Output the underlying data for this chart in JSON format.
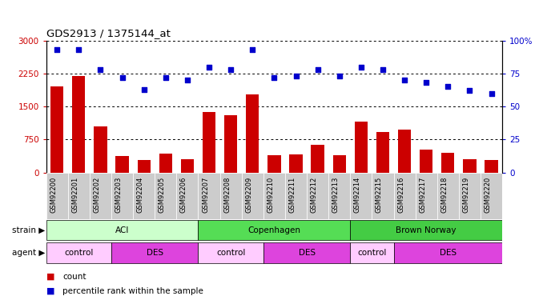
{
  "title": "GDS2913 / 1375144_at",
  "samples": [
    "GSM92200",
    "GSM92201",
    "GSM92202",
    "GSM92203",
    "GSM92204",
    "GSM92205",
    "GSM92206",
    "GSM92207",
    "GSM92208",
    "GSM92209",
    "GSM92210",
    "GSM92211",
    "GSM92212",
    "GSM92213",
    "GSM92214",
    "GSM92215",
    "GSM92216",
    "GSM92217",
    "GSM92218",
    "GSM92219",
    "GSM92220"
  ],
  "counts": [
    1950,
    2200,
    1050,
    380,
    290,
    430,
    310,
    1380,
    1310,
    1780,
    390,
    410,
    630,
    400,
    1150,
    920,
    980,
    520,
    440,
    310,
    290
  ],
  "percentiles": [
    93,
    93,
    78,
    72,
    63,
    72,
    70,
    80,
    78,
    93,
    72,
    73,
    78,
    73,
    80,
    78,
    70,
    68,
    65,
    62,
    60
  ],
  "ylim_left": [
    0,
    3000
  ],
  "ylim_right": [
    0,
    100
  ],
  "yticks_left": [
    0,
    750,
    1500,
    2250,
    3000
  ],
  "yticks_right": [
    0,
    25,
    50,
    75,
    100
  ],
  "bar_color": "#cc0000",
  "dot_color": "#0000cc",
  "strain_groups": [
    {
      "label": "ACI",
      "start": 0,
      "end": 6,
      "color": "#ccffcc"
    },
    {
      "label": "Copenhagen",
      "start": 7,
      "end": 13,
      "color": "#55dd55"
    },
    {
      "label": "Brown Norway",
      "start": 14,
      "end": 20,
      "color": "#44cc44"
    }
  ],
  "agent_groups": [
    {
      "label": "control",
      "start": 0,
      "end": 2,
      "color": "#ffccff"
    },
    {
      "label": "DES",
      "start": 3,
      "end": 6,
      "color": "#dd44dd"
    },
    {
      "label": "control",
      "start": 7,
      "end": 9,
      "color": "#ffccff"
    },
    {
      "label": "DES",
      "start": 10,
      "end": 13,
      "color": "#dd44dd"
    },
    {
      "label": "control",
      "start": 14,
      "end": 15,
      "color": "#ffccff"
    },
    {
      "label": "DES",
      "start": 16,
      "end": 20,
      "color": "#dd44dd"
    }
  ],
  "legend_count_color": "#cc0000",
  "legend_pct_color": "#0000cc",
  "axis_color_left": "#cc0000",
  "axis_color_right": "#0000cc",
  "tick_bg_color": "#cccccc"
}
